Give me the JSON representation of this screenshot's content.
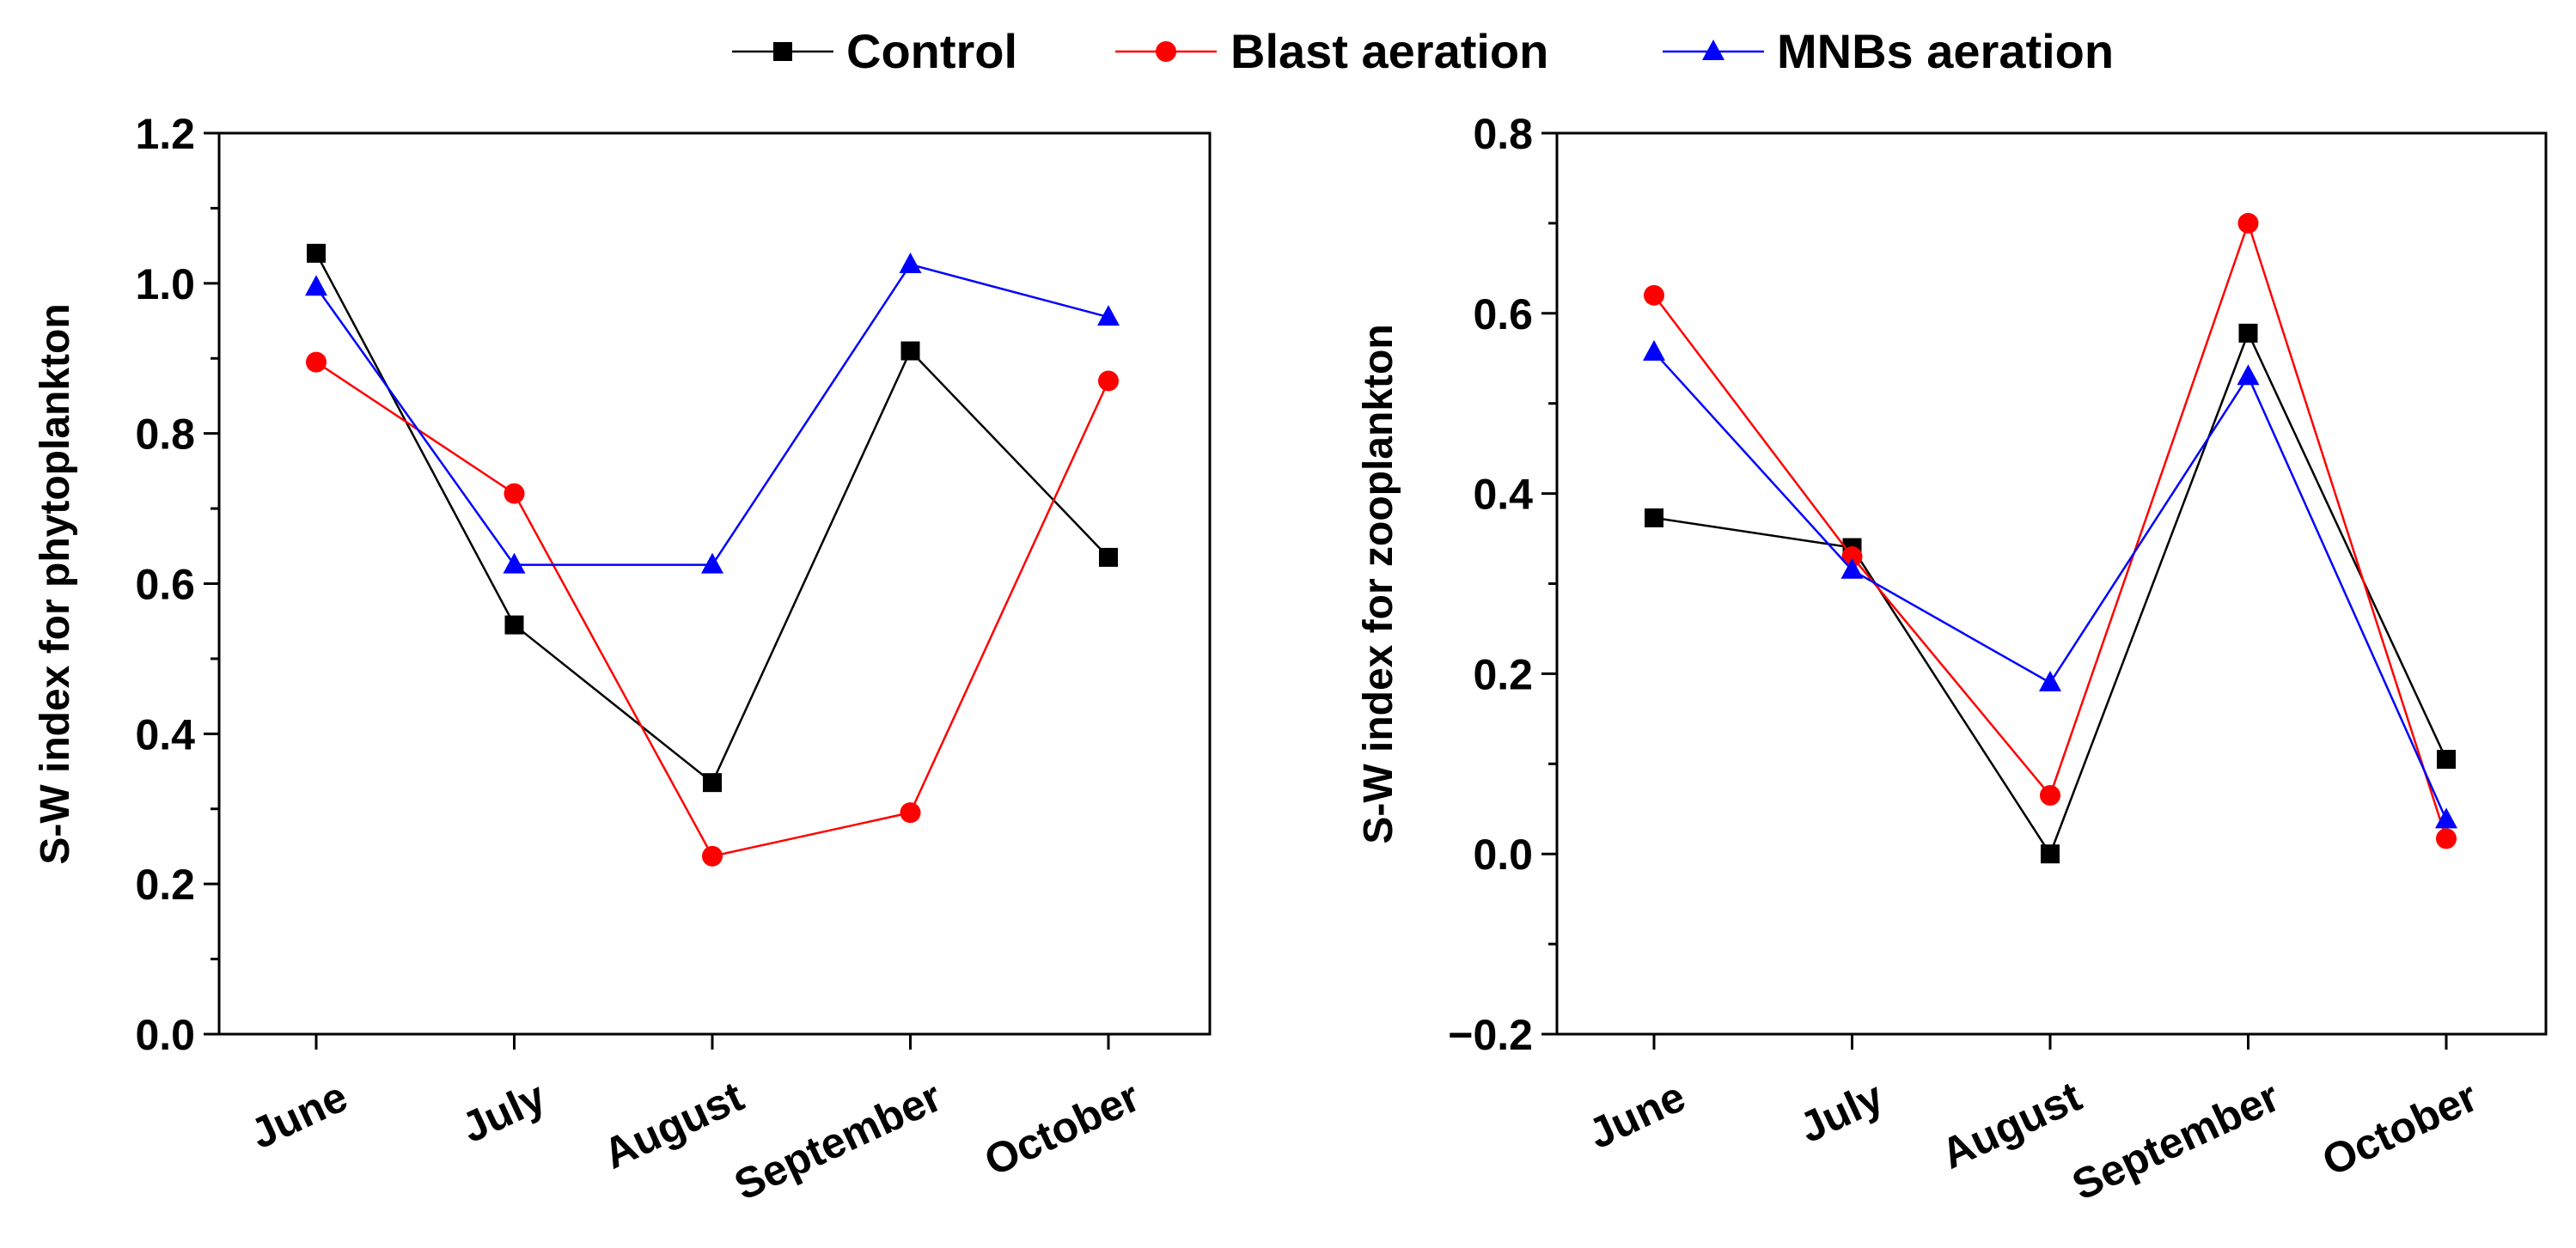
{
  "legend": {
    "placement": "top-center",
    "entries": [
      {
        "name": "Control",
        "color": "#000000",
        "marker": "square"
      },
      {
        "name": "Blast aeration",
        "color": "#ff0000",
        "marker": "circle"
      },
      {
        "name": "MNBs aeration",
        "color": "#0000ff",
        "marker": "triangle"
      }
    ]
  },
  "chart_data": [
    {
      "type": "line",
      "title": "",
      "xlabel": "",
      "ylabel": "S-W index for phytoplankton",
      "categories": [
        "June",
        "July",
        "August",
        "September",
        "October"
      ],
      "ylim": [
        0.0,
        1.2
      ],
      "yticks": [
        0.0,
        0.2,
        0.4,
        0.6,
        0.8,
        1.0,
        1.2
      ],
      "ytick_labels": [
        "0.0",
        "0.2",
        "0.4",
        "0.6",
        "0.8",
        "1.0",
        "1.2"
      ],
      "grid": false,
      "series": [
        {
          "name": "Control",
          "values": [
            1.04,
            0.545,
            0.335,
            0.91,
            0.635
          ]
        },
        {
          "name": "Blast aeration",
          "values": [
            0.895,
            0.72,
            0.237,
            0.295,
            0.87
          ]
        },
        {
          "name": "MNBs aeration",
          "values": [
            0.995,
            0.625,
            0.625,
            1.025,
            0.955
          ]
        }
      ]
    },
    {
      "type": "line",
      "title": "",
      "xlabel": "",
      "ylabel": "S-W index for zooplankton",
      "categories": [
        "June",
        "July",
        "August",
        "September",
        "October"
      ],
      "ylim": [
        -0.2,
        0.8
      ],
      "yticks": [
        -0.2,
        0.0,
        0.2,
        0.4,
        0.6,
        0.8
      ],
      "ytick_labels": [
        "−0.2",
        "0.0",
        "0.2",
        "0.4",
        "0.6",
        "0.8"
      ],
      "grid": false,
      "series": [
        {
          "name": "Control",
          "values": [
            0.373,
            0.34,
            0.0,
            0.578,
            0.105
          ]
        },
        {
          "name": "Blast aeration",
          "values": [
            0.62,
            0.33,
            0.065,
            0.7,
            0.017
          ]
        },
        {
          "name": "MNBs aeration",
          "values": [
            0.557,
            0.315,
            0.19,
            0.53,
            0.038
          ]
        }
      ]
    }
  ]
}
